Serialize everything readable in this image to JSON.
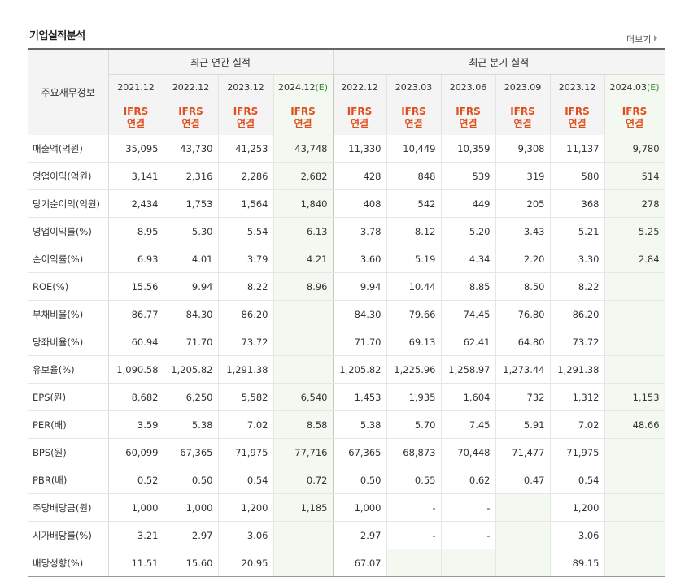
{
  "section_title": "기업실적분석",
  "more_link": "더보기",
  "header": {
    "row_label": "주요재무정보",
    "annual_group": "최근 연간 실적",
    "quarter_group": "최근 분기 실적",
    "periods": [
      "2021.12",
      "2022.12",
      "2023.12",
      "2024.12",
      "2022.12",
      "2023.03",
      "2023.06",
      "2023.09",
      "2023.12",
      "2024.03"
    ],
    "estimate_mark": "(E)",
    "ifrs_top": "IFRS",
    "ifrs_bottom": "연결"
  },
  "rows": [
    {
      "label": "매출액(억원)",
      "values": [
        "35,095",
        "43,730",
        "41,253",
        "43,748",
        "11,330",
        "10,449",
        "10,359",
        "9,308",
        "11,137",
        "9,780"
      ]
    },
    {
      "label": "영업이익(억원)",
      "values": [
        "3,141",
        "2,316",
        "2,286",
        "2,682",
        "428",
        "848",
        "539",
        "319",
        "580",
        "514"
      ]
    },
    {
      "label": "당기순이익(억원)",
      "values": [
        "2,434",
        "1,753",
        "1,564",
        "1,840",
        "408",
        "542",
        "449",
        "205",
        "368",
        "278"
      ]
    },
    {
      "label": "영업이익률(%)",
      "values": [
        "8.95",
        "5.30",
        "5.54",
        "6.13",
        "3.78",
        "8.12",
        "5.20",
        "3.43",
        "5.21",
        "5.25"
      ]
    },
    {
      "label": "순이익률(%)",
      "values": [
        "6.93",
        "4.01",
        "3.79",
        "4.21",
        "3.60",
        "5.19",
        "4.34",
        "2.20",
        "3.30",
        "2.84"
      ]
    },
    {
      "label": "ROE(%)",
      "values": [
        "15.56",
        "9.94",
        "8.22",
        "8.96",
        "9.94",
        "10.44",
        "8.85",
        "8.50",
        "8.22",
        ""
      ]
    },
    {
      "label": "부채비율(%)",
      "values": [
        "86.77",
        "84.30",
        "86.20",
        "",
        "84.30",
        "79.66",
        "74.45",
        "76.80",
        "86.20",
        ""
      ]
    },
    {
      "label": "당좌비율(%)",
      "values": [
        "60.94",
        "71.70",
        "73.72",
        "",
        "71.70",
        "69.13",
        "62.41",
        "64.80",
        "73.72",
        ""
      ]
    },
    {
      "label": "유보율(%)",
      "values": [
        "1,090.58",
        "1,205.82",
        "1,291.38",
        "",
        "1,205.82",
        "1,225.96",
        "1,258.97",
        "1,273.44",
        "1,291.38",
        ""
      ]
    },
    {
      "label": "EPS(원)",
      "values": [
        "8,682",
        "6,250",
        "5,582",
        "6,540",
        "1,453",
        "1,935",
        "1,604",
        "732",
        "1,312",
        "1,153"
      ]
    },
    {
      "label": "PER(배)",
      "values": [
        "3.59",
        "5.38",
        "7.02",
        "8.58",
        "5.38",
        "5.70",
        "7.45",
        "5.91",
        "7.02",
        "48.66"
      ]
    },
    {
      "label": "BPS(원)",
      "values": [
        "60,099",
        "67,365",
        "71,975",
        "77,716",
        "67,365",
        "68,873",
        "70,448",
        "71,477",
        "71,975",
        ""
      ]
    },
    {
      "label": "PBR(배)",
      "values": [
        "0.52",
        "0.50",
        "0.54",
        "0.72",
        "0.50",
        "0.55",
        "0.62",
        "0.47",
        "0.54",
        ""
      ]
    },
    {
      "label": "주당배당금(원)",
      "values": [
        "1,000",
        "1,000",
        "1,200",
        "1,185",
        "1,000",
        "-",
        "-",
        "",
        "1,200",
        ""
      ]
    },
    {
      "label": "시가배당률(%)",
      "values": [
        "3.21",
        "2.97",
        "3.06",
        "",
        "2.97",
        "-",
        "-",
        "",
        "3.06",
        ""
      ]
    },
    {
      "label": "배당성향(%)",
      "values": [
        "11.51",
        "15.60",
        "20.95",
        "",
        "67.07",
        "",
        "",
        "",
        "89.15",
        ""
      ]
    }
  ],
  "group_top_rows": [
    3,
    6,
    9,
    13
  ],
  "estimate_columns": [
    3,
    9
  ],
  "empty_shaded_cells": [
    [
      13,
      7
    ],
    [
      14,
      7
    ],
    [
      15,
      5
    ],
    [
      15,
      6
    ],
    [
      15,
      7
    ]
  ]
}
